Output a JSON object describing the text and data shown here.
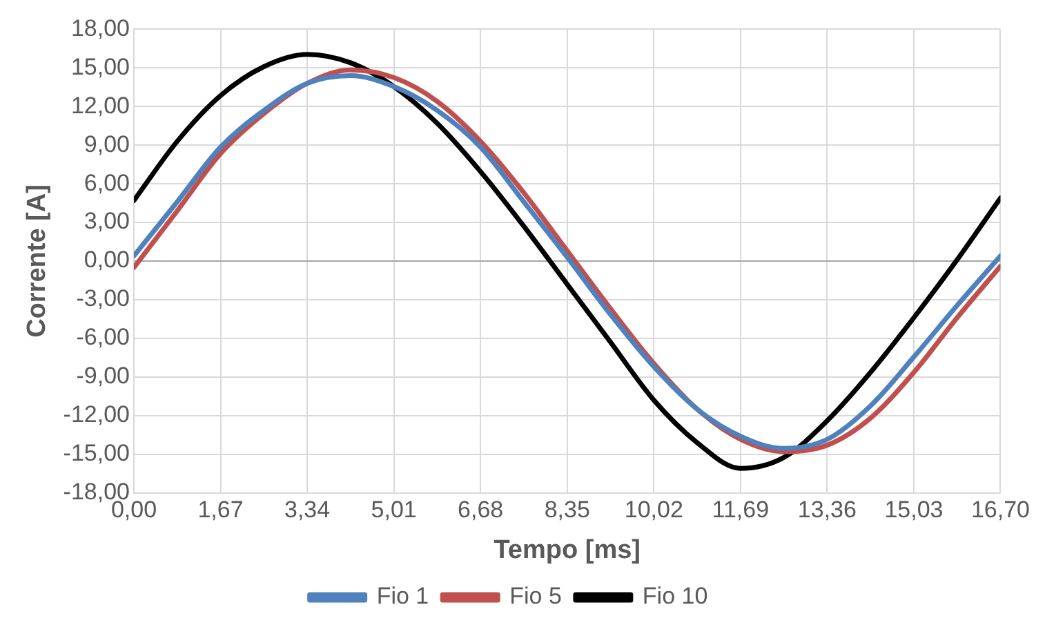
{
  "chart_data": {
    "type": "line",
    "xlabel": "Tempo [ms]",
    "ylabel": "Corrente [A]",
    "x": [
      0,
      0.835,
      1.67,
      2.505,
      3.34,
      4.175,
      5.01,
      5.845,
      6.68,
      7.515,
      8.35,
      9.185,
      10.02,
      10.855,
      11.69,
      12.525,
      13.36,
      14.195,
      15.03,
      15.865,
      16.7
    ],
    "series": [
      {
        "name": "Fio 1",
        "color": "#4f81bd",
        "values": [
          0.4,
          4.6,
          8.85,
          11.7,
          13.8,
          14.4,
          13.55,
          11.7,
          8.85,
          4.6,
          0.3,
          -4.15,
          -8.2,
          -11.5,
          -13.6,
          -14.55,
          -13.85,
          -11.25,
          -7.45,
          -3.45,
          0.4
        ]
      },
      {
        "name": "Fio 5",
        "color": "#c0504d",
        "values": [
          -0.5,
          3.9,
          8.35,
          11.45,
          13.8,
          14.85,
          14.25,
          12.4,
          9.3,
          5.3,
          0.8,
          -3.7,
          -7.95,
          -11.5,
          -13.85,
          -14.8,
          -14.3,
          -12.2,
          -8.65,
          -4.4,
          -0.4
        ]
      },
      {
        "name": "Fio 10",
        "color": "#000000",
        "values": [
          4.7,
          9.3,
          12.85,
          15.1,
          16.05,
          15.4,
          13.55,
          10.7,
          6.95,
          2.7,
          -1.8,
          -6.3,
          -10.8,
          -14.1,
          -16.1,
          -15.25,
          -12.4,
          -8.65,
          -4.4,
          0.1,
          4.9
        ]
      }
    ],
    "xlim": [
      0,
      16.7
    ],
    "xticks": [
      {
        "value": 0,
        "label": "0,00"
      },
      {
        "value": 1.67,
        "label": "1,67"
      },
      {
        "value": 3.34,
        "label": "3,34"
      },
      {
        "value": 5.01,
        "label": "5,01"
      },
      {
        "value": 6.68,
        "label": "6,68"
      },
      {
        "value": 8.35,
        "label": "8,35"
      },
      {
        "value": 10.02,
        "label": "10,02"
      },
      {
        "value": 11.69,
        "label": "11,69"
      },
      {
        "value": 13.36,
        "label": "13,36"
      },
      {
        "value": 15.03,
        "label": "15,03"
      },
      {
        "value": 16.7,
        "label": "16,70"
      }
    ],
    "ylim": [
      -18,
      18
    ],
    "yticks": [
      {
        "value": -18,
        "label": "-18,00"
      },
      {
        "value": -15,
        "label": "-15,00"
      },
      {
        "value": -12,
        "label": "-12,00"
      },
      {
        "value": -9,
        "label": "-9,00"
      },
      {
        "value": -6,
        "label": "-6,00"
      },
      {
        "value": -3,
        "label": "-3,00"
      },
      {
        "value": 0,
        "label": "0,00"
      },
      {
        "value": 3,
        "label": "3,00"
      },
      {
        "value": 6,
        "label": "6,00"
      },
      {
        "value": 9,
        "label": "9,00"
      },
      {
        "value": 12,
        "label": "12,00"
      },
      {
        "value": 15,
        "label": "15,00"
      },
      {
        "value": 18,
        "label": "18,00"
      }
    ],
    "grid": true,
    "legend": "bottom",
    "marker": "none",
    "line_style": "solid"
  }
}
